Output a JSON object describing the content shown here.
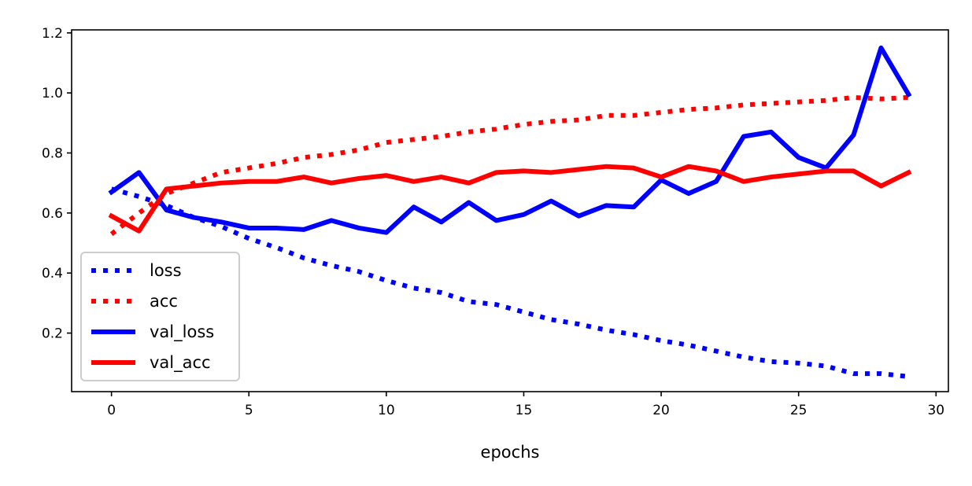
{
  "chart_data": {
    "type": "line",
    "title": "",
    "xlabel": "epochs",
    "ylabel": "",
    "xlim": [
      -1.45,
      30.45
    ],
    "ylim": [
      0.005,
      1.21
    ],
    "xticks": [
      0,
      5,
      10,
      15,
      20,
      25,
      30
    ],
    "yticks": [
      0.2,
      0.4,
      0.6,
      0.8,
      1.0,
      1.2
    ],
    "ytick_labels": [
      "0.2",
      "0.4",
      "0.6",
      "0.8",
      "1.0",
      "1.2"
    ],
    "grid": false,
    "legend_position": "lower-left",
    "x": [
      0,
      1,
      2,
      3,
      4,
      5,
      6,
      7,
      8,
      9,
      10,
      11,
      12,
      13,
      14,
      15,
      16,
      17,
      18,
      19,
      20,
      21,
      22,
      23,
      24,
      25,
      26,
      27,
      28,
      29
    ],
    "series": [
      {
        "name": "loss",
        "color": "#0000ff",
        "style": "dotted",
        "values": [
          0.68,
          0.655,
          0.625,
          0.585,
          0.555,
          0.515,
          0.485,
          0.45,
          0.425,
          0.405,
          0.375,
          0.35,
          0.335,
          0.305,
          0.295,
          0.27,
          0.245,
          0.23,
          0.21,
          0.195,
          0.175,
          0.16,
          0.14,
          0.12,
          0.105,
          0.1,
          0.09,
          0.065,
          0.065,
          0.055
        ]
      },
      {
        "name": "acc",
        "color": "#ff0000",
        "style": "dotted",
        "values": [
          0.53,
          0.6,
          0.665,
          0.7,
          0.735,
          0.75,
          0.765,
          0.785,
          0.795,
          0.81,
          0.835,
          0.845,
          0.855,
          0.87,
          0.88,
          0.895,
          0.905,
          0.91,
          0.925,
          0.925,
          0.935,
          0.945,
          0.95,
          0.96,
          0.965,
          0.97,
          0.975,
          0.985,
          0.98,
          0.985
        ]
      },
      {
        "name": "val_loss",
        "color": "#0000ff",
        "style": "solid",
        "values": [
          0.67,
          0.735,
          0.61,
          0.585,
          0.57,
          0.55,
          0.55,
          0.545,
          0.575,
          0.55,
          0.535,
          0.62,
          0.57,
          0.635,
          0.575,
          0.595,
          0.64,
          0.59,
          0.625,
          0.62,
          0.71,
          0.665,
          0.705,
          0.855,
          0.87,
          0.785,
          0.75,
          0.86,
          1.15,
          0.995
        ]
      },
      {
        "name": "val_acc",
        "color": "#ff0000",
        "style": "solid",
        "values": [
          0.59,
          0.54,
          0.68,
          0.69,
          0.7,
          0.705,
          0.705,
          0.72,
          0.7,
          0.715,
          0.725,
          0.705,
          0.72,
          0.7,
          0.735,
          0.74,
          0.735,
          0.745,
          0.755,
          0.75,
          0.72,
          0.755,
          0.74,
          0.705,
          0.72,
          0.73,
          0.74,
          0.74,
          0.69,
          0.735
        ]
      }
    ]
  }
}
